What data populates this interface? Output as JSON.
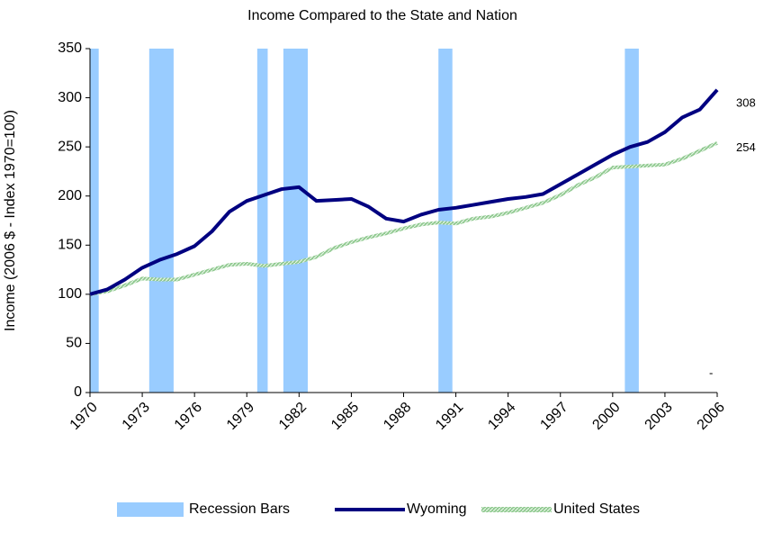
{
  "chart_data": {
    "type": "line",
    "title": "Income Compared to the State and Nation",
    "ylabel": "Income (2006 $ - Index 1970=100)",
    "x": [
      1970,
      1971,
      1972,
      1973,
      1974,
      1975,
      1976,
      1977,
      1978,
      1979,
      1980,
      1981,
      1982,
      1983,
      1984,
      1985,
      1986,
      1987,
      1988,
      1989,
      1990,
      1991,
      1992,
      1993,
      1994,
      1995,
      1996,
      1997,
      1998,
      1999,
      2000,
      2001,
      2002,
      2003,
      2004,
      2005,
      2006
    ],
    "xlim": [
      1970,
      2006
    ],
    "xticks": [
      1970,
      1973,
      1976,
      1979,
      1982,
      1985,
      1988,
      1991,
      1994,
      1997,
      2000,
      2003,
      2006
    ],
    "ylim": [
      0,
      350
    ],
    "yticks": [
      0,
      50,
      100,
      150,
      200,
      250,
      300,
      350
    ],
    "recessions": {
      "name": "Recession Bars",
      "color": "#99ccff",
      "spans": [
        [
          1970,
          1970.5
        ],
        [
          1973.4,
          1974.8
        ],
        [
          1979.6,
          1980.2
        ],
        [
          1981.1,
          1982.5
        ],
        [
          1990,
          1990.8
        ],
        [
          2000.7,
          2001.5
        ]
      ]
    },
    "series": [
      {
        "name": "Wyoming",
        "color": "#000080",
        "values": [
          100,
          105,
          115,
          127,
          135,
          141,
          149,
          164,
          184,
          195,
          201,
          207,
          209,
          195,
          196,
          197,
          189,
          177,
          174,
          181,
          186,
          188,
          191,
          194,
          197,
          199,
          202,
          212,
          222,
          232,
          242,
          250,
          255,
          265,
          280,
          288,
          308
        ]
      },
      {
        "name": "United States",
        "color": "#8fc98f",
        "values": [
          100,
          103,
          109,
          116,
          115,
          115,
          120,
          125,
          130,
          131,
          129,
          131,
          133,
          138,
          147,
          153,
          158,
          162,
          167,
          171,
          173,
          172,
          177,
          179,
          183,
          188,
          193,
          201,
          211,
          219,
          229,
          230,
          231,
          232,
          238,
          246,
          254
        ]
      }
    ],
    "annotation": "-",
    "legend": "bottom"
  }
}
